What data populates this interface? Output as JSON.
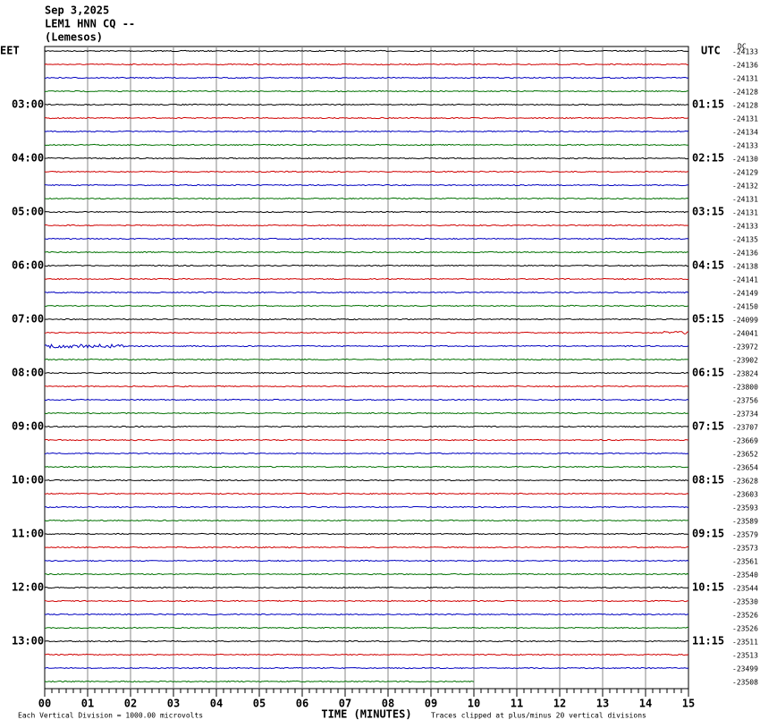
{
  "header": {
    "date": "Sep 3,2025",
    "station": "LEM1 HNN CQ --",
    "location": "(Lemesos)"
  },
  "left_axis": {
    "title": "EET",
    "labels": [
      "03:00",
      "04:00",
      "05:00",
      "06:00",
      "07:00",
      "08:00",
      "09:00",
      "10:00",
      "11:00",
      "12:00",
      "13:00"
    ]
  },
  "right_axis": {
    "title": "UTC",
    "labels": [
      "01:15",
      "02:15",
      "03:15",
      "04:15",
      "05:15",
      "06:15",
      "07:15",
      "08:15",
      "09:15",
      "10:15",
      "11:15"
    ],
    "dc_title": "DC",
    "dc_values": [
      -24133,
      -24136,
      -24131,
      -24128,
      -24128,
      -24131,
      -24134,
      -24133,
      -24130,
      -24129,
      -24132,
      -24131,
      -24131,
      -24133,
      -24135,
      -24136,
      -24138,
      -24141,
      -24149,
      -24150,
      -24099,
      -24041,
      -23972,
      -23902,
      -23824,
      -23800,
      -23756,
      -23734,
      -23707,
      -23669,
      -23652,
      -23654,
      -23628,
      -23603,
      -23593,
      -23589,
      -23579,
      -23573,
      -23561,
      -23540,
      -23544,
      -23530,
      -23526,
      -23526,
      -23511,
      -23513,
      -23499,
      -23508
    ]
  },
  "x_axis": {
    "labels": [
      "00",
      "01",
      "02",
      "03",
      "04",
      "05",
      "06",
      "07",
      "08",
      "09",
      "10",
      "11",
      "12",
      "13",
      "14",
      "15"
    ],
    "title": "TIME (MINUTES)"
  },
  "footer": {
    "scale_note": "Each Vertical Division = 1000.00 microvolts",
    "clip_note": "Traces clipped at plus/minus 20 vertical divisions"
  },
  "trace_colors": [
    "#000000",
    "#d00000",
    "#0000c0",
    "#007000"
  ]
}
